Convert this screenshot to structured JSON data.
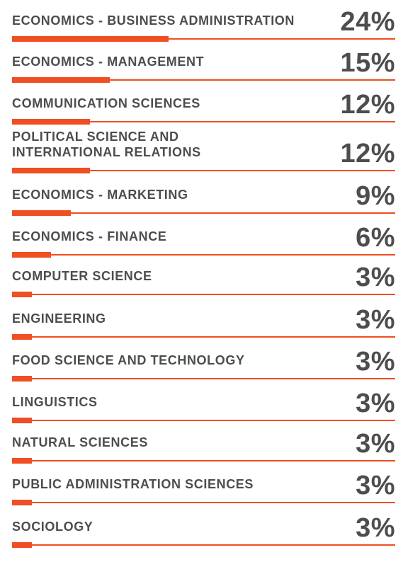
{
  "chart_data": {
    "type": "bar",
    "categories": [
      "ECONOMICS - BUSINESS ADMINISTRATION",
      "ECONOMICS - MANAGEMENT",
      "COMMUNICATION SCIENCES",
      "POLITICAL SCIENCE AND\nINTERNATIONAL RELATIONS",
      "ECONOMICS - MARKETING",
      "ECONOMICS - FINANCE",
      "COMPUTER SCIENCE",
      "ENGINEERING",
      "FOOD SCIENCE AND TECHNOLOGY",
      "LINGUISTICS",
      "NATURAL SCIENCES",
      "PUBLIC ADMINISTRATION SCIENCES",
      "SOCIOLOGY"
    ],
    "values": [
      24,
      15,
      12,
      12,
      9,
      6,
      3,
      3,
      3,
      3,
      3,
      3,
      3
    ],
    "value_labels": [
      "24%",
      "15%",
      "12%",
      "12%",
      "9%",
      "6%",
      "3%",
      "3%",
      "3%",
      "3%",
      "3%",
      "3%",
      "3%"
    ],
    "unit": "%",
    "xlim": [
      0,
      100
    ],
    "orientation": "horizontal",
    "title": "",
    "xlabel": "",
    "ylabel": "",
    "grid": false,
    "colors": {
      "bar": "#f04e23",
      "line": "#f04e23",
      "text": "#4d4d4f",
      "background": "#ffffff"
    }
  }
}
